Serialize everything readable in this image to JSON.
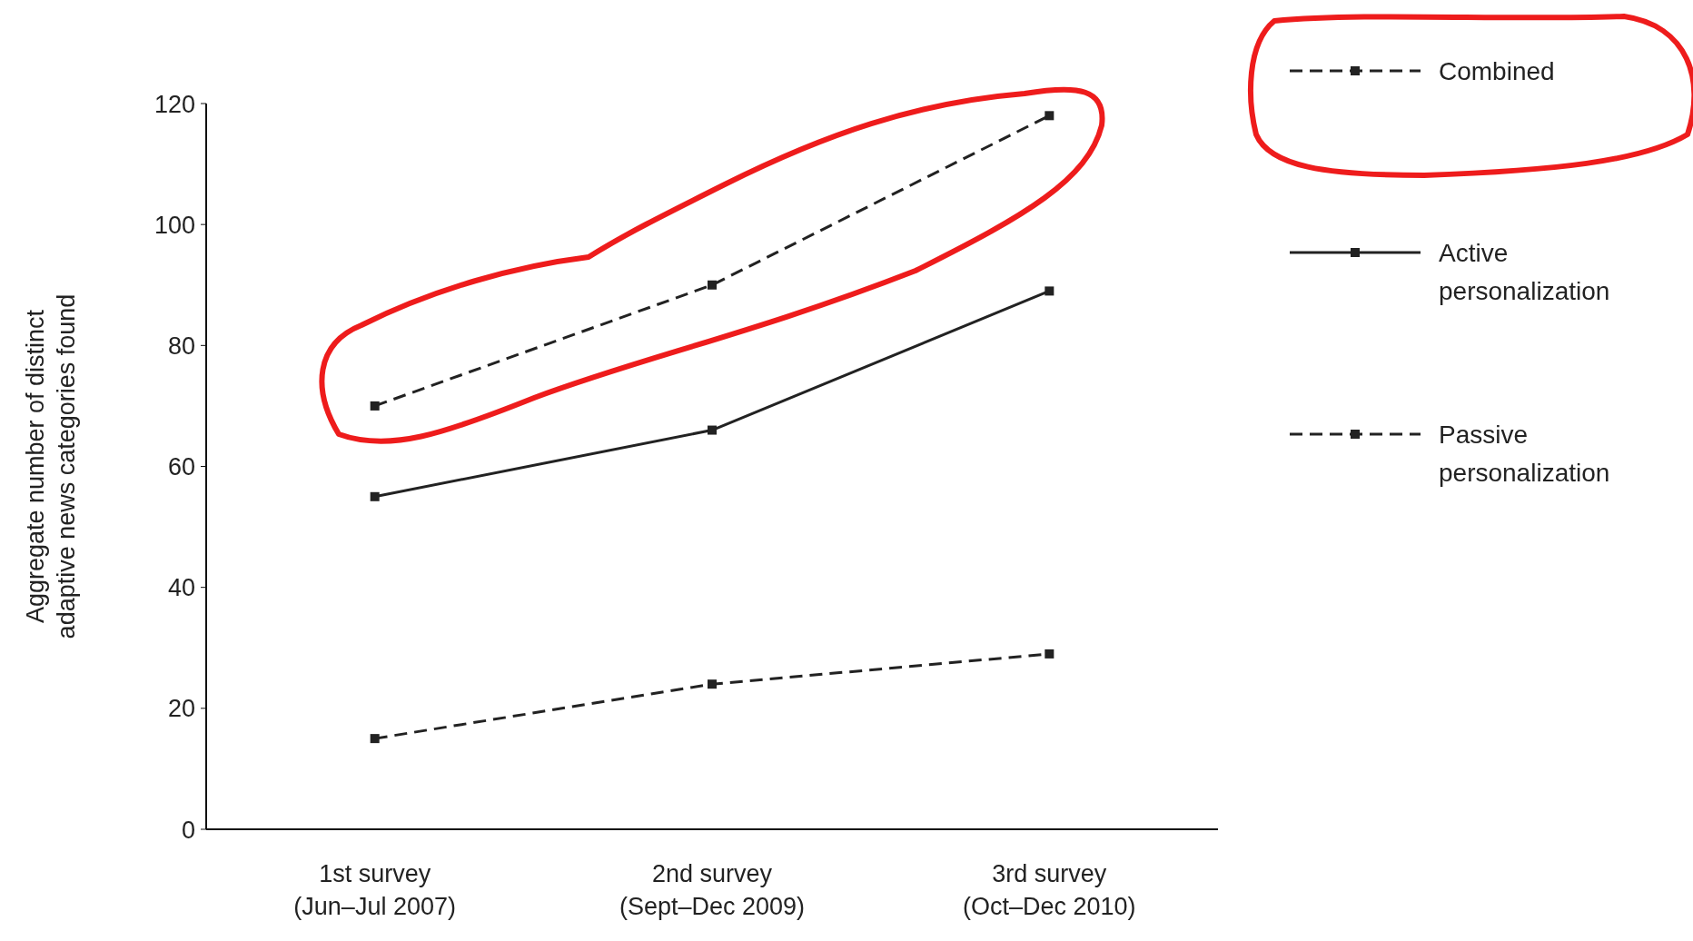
{
  "chart_data": {
    "type": "line",
    "ylabel": "Aggregate number of distinct adaptive news categories found",
    "categories": [
      "1st survey (Jun–Jul 2007)",
      "2nd survey (Sept–Dec 2009)",
      "3rd survey (Oct–Dec 2010)"
    ],
    "series": [
      {
        "name": "Combined",
        "color": "#222222",
        "values": [
          70,
          90,
          118
        ],
        "line_style": "dashed"
      },
      {
        "name": "Active personalization",
        "color": "#222222",
        "values": [
          55,
          66,
          89
        ],
        "line_style": "solid"
      },
      {
        "name": "Passive personalization",
        "color": "#222222",
        "values": [
          15,
          24,
          29
        ],
        "line_style": "dashed"
      }
    ],
    "ylim": [
      0,
      120
    ],
    "yticks": [
      0,
      20,
      40,
      60,
      80,
      100,
      120
    ],
    "grid": false,
    "legend": "right",
    "marker": "square"
  }
}
